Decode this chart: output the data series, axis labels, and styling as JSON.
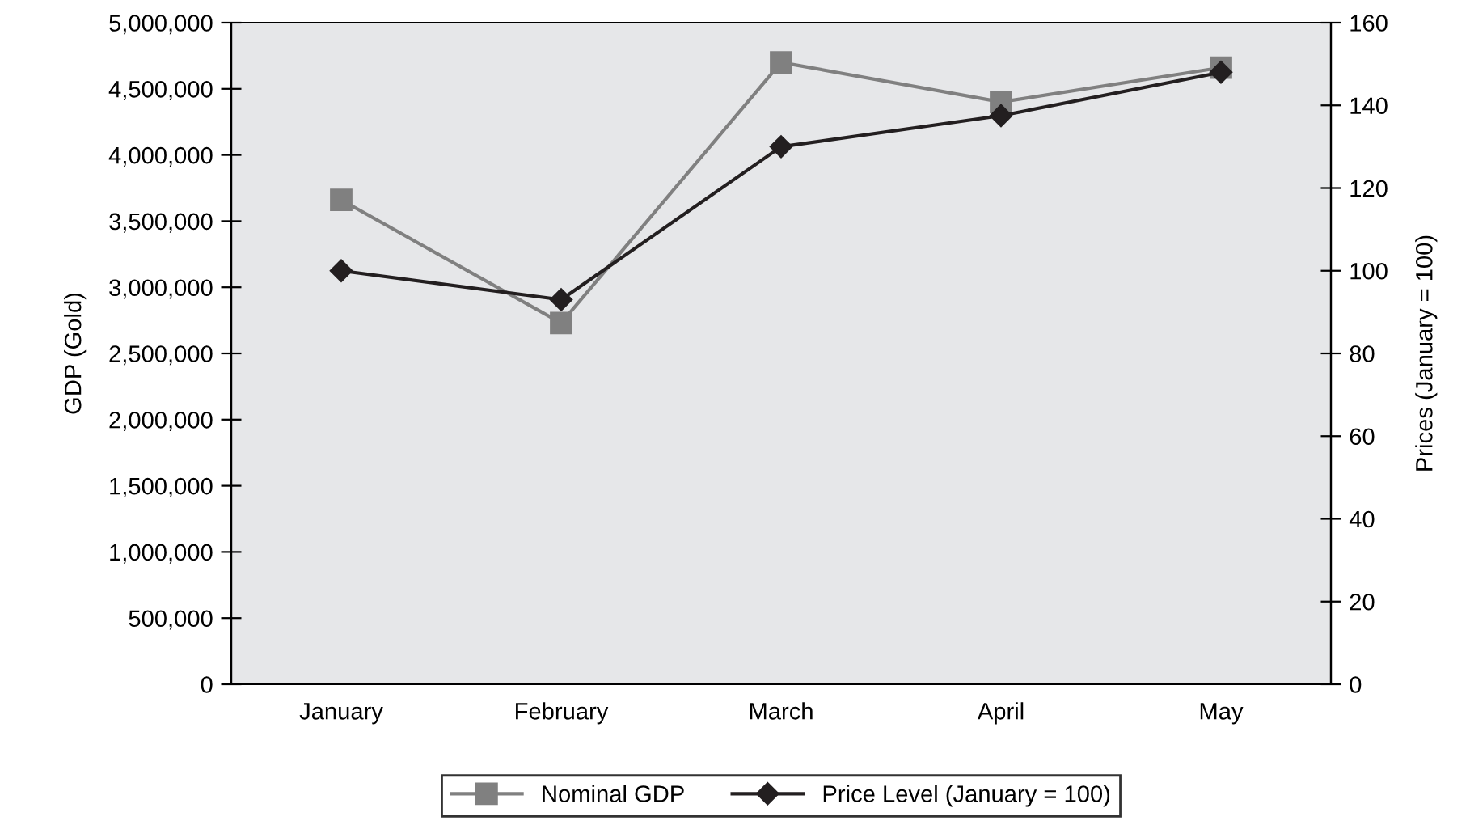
{
  "chart_data": {
    "type": "line",
    "categories": [
      "January",
      "February",
      "March",
      "April",
      "May"
    ],
    "ylabel": "GDP (Gold)",
    "y2label": "Prices (January = 100)",
    "ylim": [
      0,
      5000000
    ],
    "yticks": [
      {
        "value": 0,
        "label": "0"
      },
      {
        "value": 500000,
        "label": "500,000"
      },
      {
        "value": 1000000,
        "label": "1,000,000"
      },
      {
        "value": 1500000,
        "label": "1,500,000"
      },
      {
        "value": 2000000,
        "label": "2,000,000"
      },
      {
        "value": 2500000,
        "label": "2,500,000"
      },
      {
        "value": 3000000,
        "label": "3,000,000"
      },
      {
        "value": 3500000,
        "label": "3,500,000"
      },
      {
        "value": 4000000,
        "label": "4,000,000"
      },
      {
        "value": 4500000,
        "label": "4,500,000"
      },
      {
        "value": 5000000,
        "label": "5,000,000"
      }
    ],
    "y2lim": [
      0,
      160
    ],
    "y2ticks": [
      0,
      20,
      40,
      60,
      80,
      100,
      120,
      140,
      160
    ],
    "series": [
      {
        "name": "Nominal GDP",
        "color": "#808080",
        "marker": "square",
        "values": [
          3660000,
          2730000,
          4700000,
          4400000,
          4660000
        ]
      },
      {
        "name": "Price Level (January = 100)",
        "color": "#231f20",
        "marker": "diamond",
        "axis": "y2",
        "values": [
          100,
          93,
          130,
          137.5,
          148
        ]
      }
    ],
    "grid": false,
    "legend": "bottom"
  }
}
